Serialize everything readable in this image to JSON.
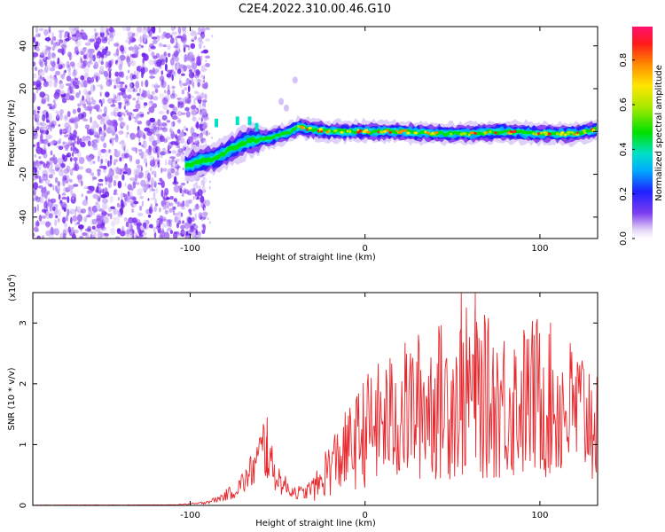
{
  "title": "C2E4.2022.310.00.46.G10",
  "chart_data": [
    {
      "type": "heatmap",
      "name": "spectrogram",
      "xlabel": "Height of straight line (km)",
      "ylabel": "Frequency (Hz)",
      "xlim": [
        -190,
        133
      ],
      "ylim": [
        -50,
        49
      ],
      "xticks": [
        -100,
        0,
        100
      ],
      "xtick_labels": [
        "-100",
        "0",
        "100"
      ],
      "yticks": [
        -40,
        -20,
        0,
        20,
        40
      ],
      "ytick_labels": [
        "-40",
        "-20",
        "0",
        "20",
        "40"
      ],
      "noise_region_x": [
        -190,
        -100
      ],
      "signal_trace": {
        "x": [
          -103,
          -95,
          -88,
          -80,
          -72,
          -64,
          -55,
          -45,
          -38,
          -30,
          -20,
          -10,
          0,
          20,
          40,
          60,
          80,
          100,
          120,
          133
        ],
        "y": [
          -16,
          -14,
          -13,
          -10,
          -6,
          -4,
          -3,
          -1,
          2,
          1,
          0,
          0,
          0,
          0,
          -1,
          -1,
          0,
          -1,
          -1,
          1
        ]
      },
      "colorbar": {
        "label": "Normalized spectral amplitude",
        "range": [
          0,
          0.95
        ],
        "ticks": [
          0.0,
          0.2,
          0.4,
          0.6,
          0.8
        ],
        "tick_labels": [
          "0.0",
          "0.2",
          "0.4",
          "0.6",
          "0.8"
        ]
      }
    },
    {
      "type": "line",
      "name": "snr",
      "xlabel": "Height of straight line (km)",
      "ylabel": "SNR (10 * v/v)",
      "scale_label": "(x10",
      "scale_exponent": "4",
      "scale_suffix": ")",
      "color": "#e8282d",
      "xlim": [
        -190,
        133
      ],
      "ylim": [
        0,
        3.5
      ],
      "xticks": [
        -100,
        0,
        100
      ],
      "xtick_labels": [
        "-100",
        "0",
        "100"
      ],
      "yticks": [
        0,
        1,
        2,
        3
      ],
      "ytick_labels": [
        "0",
        "1",
        "2",
        "3"
      ],
      "envelope": {
        "x": [
          -190,
          -110,
          -95,
          -85,
          -75,
          -68,
          -62,
          -58,
          -55,
          -52,
          -48,
          -44,
          -40,
          -35,
          -30,
          -25,
          -22,
          -15,
          -5,
          0,
          10,
          20,
          30,
          40,
          50,
          60,
          70,
          80,
          90,
          100,
          110,
          120,
          133
        ],
        "y": [
          0.005,
          0.01,
          0.04,
          0.12,
          0.3,
          0.55,
          0.9,
          1.25,
          1.0,
          0.7,
          0.5,
          0.35,
          0.3,
          0.25,
          0.4,
          0.6,
          0.9,
          1.2,
          1.6,
          1.9,
          2.1,
          2.3,
          2.5,
          2.6,
          2.7,
          2.9,
          2.7,
          2.6,
          2.6,
          2.8,
          2.5,
          2.4,
          2.2
        ]
      },
      "peaks": {
        "x": [
          -56,
          55,
          63
        ],
        "y": [
          1.45,
          3.5,
          3.5
        ]
      }
    }
  ]
}
